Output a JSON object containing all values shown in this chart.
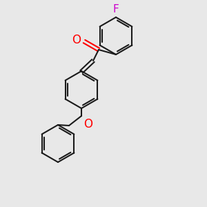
{
  "bg_color": "#e8e8e8",
  "bond_color": "#1a1a1a",
  "O_color": "#ff0000",
  "F_color": "#cc00cc",
  "line_width": 1.5,
  "font_size_atom": 11,
  "figsize": [
    3.0,
    3.0
  ],
  "dpi": 100,
  "xlim": [
    0,
    300
  ],
  "ylim": [
    0,
    300
  ]
}
